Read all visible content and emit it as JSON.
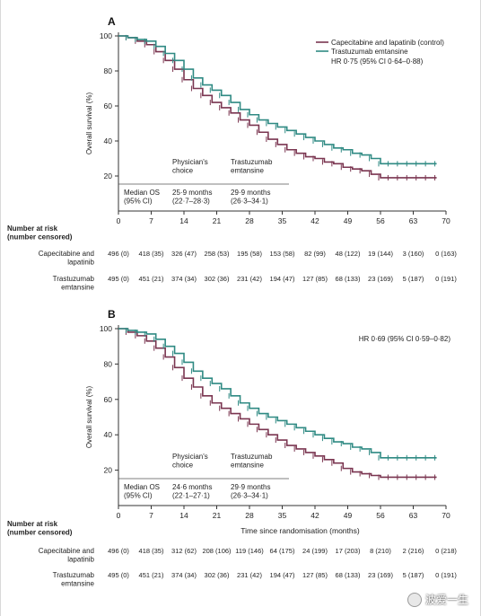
{
  "chart_data": [
    {
      "type": "line",
      "panel_label": "A",
      "xlabel": "",
      "ylabel": "Overall survival (%)",
      "xlim": [
        0,
        70
      ],
      "ylim": [
        0,
        100
      ],
      "xticks": [
        0,
        7,
        14,
        21,
        28,
        35,
        42,
        49,
        56,
        63,
        70
      ],
      "yticks": [
        0,
        20,
        40,
        60,
        80,
        100
      ],
      "legend_position": "top-right",
      "legend": [
        "Capecitabine and lapatinib (control)",
        "Trastuzumab emtansine"
      ],
      "annotation": "HR 0·75 (95% CI 0·64–0·88)",
      "series": [
        {
          "name": "Capecitabine and lapatinib (control)",
          "color": "#7a3550",
          "x": [
            0,
            2,
            4,
            6,
            8,
            10,
            12,
            14,
            16,
            18,
            20,
            22,
            24,
            26,
            28,
            30,
            32,
            34,
            36,
            38,
            40,
            42,
            44,
            46,
            48,
            50,
            52,
            54,
            56,
            58,
            60,
            62,
            64,
            66,
            68
          ],
          "y": [
            100,
            99,
            97,
            95,
            91,
            86,
            81,
            75,
            70,
            66,
            62,
            59,
            56,
            52,
            49,
            45,
            41,
            38,
            35,
            33,
            31,
            30,
            28,
            27,
            25,
            24,
            23,
            21,
            19,
            19,
            19,
            19,
            19,
            19,
            19
          ]
        },
        {
          "name": "Trastuzumab emtansine",
          "color": "#2f8a83",
          "x": [
            0,
            2,
            4,
            6,
            8,
            10,
            12,
            14,
            16,
            18,
            20,
            22,
            24,
            26,
            28,
            30,
            32,
            34,
            36,
            38,
            40,
            42,
            44,
            46,
            48,
            50,
            52,
            54,
            56,
            58,
            60,
            62,
            64,
            66,
            68
          ],
          "y": [
            100,
            99,
            98,
            97,
            94,
            90,
            86,
            81,
            76,
            72,
            69,
            66,
            62,
            58,
            55,
            52,
            50,
            48,
            46,
            44,
            42,
            40,
            38,
            36,
            35,
            33,
            32,
            30,
            27,
            27,
            27,
            27,
            27,
            27,
            27
          ]
        }
      ],
      "median_os": {
        "label": "Median OS (95% CI)",
        "col1_head": "Physician's choice",
        "col2_head": "Trastuzumab emtansine",
        "col1_val": "25·9 months (22·7–28·3)",
        "col2_val": "29·9 months (26·3–34·1)"
      },
      "risk_table": {
        "title": "Number at risk (number censored)",
        "rows": [
          {
            "label": "Capecitabine and lapatinib",
            "values": [
              "496 (0)",
              "418 (35)",
              "326 (47)",
              "258 (53)",
              "195 (58)",
              "153 (58)",
              "82 (99)",
              "48 (122)",
              "19 (144)",
              "3 (160)",
              "0 (163)"
            ]
          },
          {
            "label": "Trastuzumab emtansine",
            "values": [
              "495 (0)",
              "451 (21)",
              "374 (34)",
              "302 (36)",
              "231 (42)",
              "194 (47)",
              "127 (85)",
              "68 (133)",
              "23 (169)",
              "5 (187)",
              "0 (191)"
            ]
          }
        ]
      }
    },
    {
      "type": "line",
      "panel_label": "B",
      "xlabel": "Time since randomisation (months)",
      "ylabel": "Overall survival (%)",
      "xlim": [
        0,
        70
      ],
      "ylim": [
        0,
        100
      ],
      "xticks": [
        0,
        7,
        14,
        21,
        28,
        35,
        42,
        49,
        56,
        63,
        70
      ],
      "yticks": [
        0,
        20,
        40,
        60,
        80,
        100
      ],
      "annotation": "HR 0·69 (95% CI 0·59–0·82)",
      "series": [
        {
          "name": "Capecitabine and lapatinib",
          "color": "#7a3550",
          "x": [
            0,
            2,
            4,
            6,
            8,
            10,
            12,
            14,
            16,
            18,
            20,
            22,
            24,
            26,
            28,
            30,
            32,
            34,
            36,
            38,
            40,
            42,
            44,
            46,
            48,
            50,
            52,
            54,
            56,
            58,
            60,
            62,
            64,
            66,
            68
          ],
          "y": [
            100,
            98,
            96,
            93,
            89,
            84,
            78,
            72,
            67,
            62,
            58,
            55,
            52,
            49,
            46,
            43,
            40,
            37,
            34,
            32,
            30,
            28,
            26,
            24,
            21,
            19,
            18,
            17,
            16,
            16,
            16,
            16,
            16,
            16,
            16
          ]
        },
        {
          "name": "Trastuzumab emtansine",
          "color": "#2f8a83",
          "x": [
            0,
            2,
            4,
            6,
            8,
            10,
            12,
            14,
            16,
            18,
            20,
            22,
            24,
            26,
            28,
            30,
            32,
            34,
            36,
            38,
            40,
            42,
            44,
            46,
            48,
            50,
            52,
            54,
            56,
            58,
            60,
            62,
            64,
            66,
            68
          ],
          "y": [
            100,
            99,
            98,
            97,
            94,
            90,
            86,
            81,
            76,
            72,
            69,
            66,
            62,
            58,
            55,
            52,
            50,
            48,
            46,
            44,
            42,
            40,
            38,
            36,
            35,
            33,
            32,
            30,
            27,
            27,
            27,
            27,
            27,
            27,
            27
          ]
        }
      ],
      "median_os": {
        "label": "Median OS (95% CI)",
        "col1_head": "Physician's choice",
        "col2_head": "Trastuzumab emtansine",
        "col1_val": "24·6 months (22·1–27·1)",
        "col2_val": "29·9 months (26·3–34·1)"
      },
      "risk_table": {
        "title": "Number at risk (number censored)",
        "rows": [
          {
            "label": "Capecitabine and lapatinib",
            "values": [
              "496 (0)",
              "418 (35)",
              "312 (62)",
              "208 (106)",
              "119 (146)",
              "64 (175)",
              "24 (199)",
              "17 (203)",
              "8 (210)",
              "2 (216)",
              "0 (218)"
            ]
          },
          {
            "label": "Trastuzumab emtansine",
            "values": [
              "495 (0)",
              "451 (21)",
              "374 (34)",
              "302 (36)",
              "231 (42)",
              "194 (47)",
              "127 (85)",
              "68 (133)",
              "23 (169)",
              "5 (187)",
              "0 (191)"
            ]
          }
        ]
      }
    }
  ],
  "watermark": {
    "text": "波爱一生",
    "icon": "wechat-icon"
  }
}
